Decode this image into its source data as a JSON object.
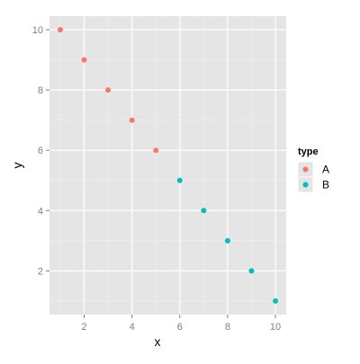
{
  "chart_data": {
    "type": "scatter",
    "xlabel": "x",
    "ylabel": "y",
    "xlim": [
      0.55,
      10.45
    ],
    "ylim": [
      0.55,
      10.45
    ],
    "x_ticks": [
      2,
      4,
      6,
      8,
      10
    ],
    "y_ticks": [
      2,
      4,
      6,
      8,
      10
    ],
    "grid": true,
    "legend": {
      "title": "type",
      "placement": "right"
    },
    "series": [
      {
        "name": "A",
        "color": "#F8766D",
        "points": [
          {
            "x": 1,
            "y": 10
          },
          {
            "x": 2,
            "y": 9
          },
          {
            "x": 3,
            "y": 8
          },
          {
            "x": 4,
            "y": 7
          },
          {
            "x": 5,
            "y": 6
          }
        ]
      },
      {
        "name": "B",
        "color": "#00BFC4",
        "points": [
          {
            "x": 6,
            "y": 5
          },
          {
            "x": 7,
            "y": 4
          },
          {
            "x": 8,
            "y": 3
          },
          {
            "x": 9,
            "y": 2
          },
          {
            "x": 10,
            "y": 1
          }
        ]
      }
    ]
  }
}
